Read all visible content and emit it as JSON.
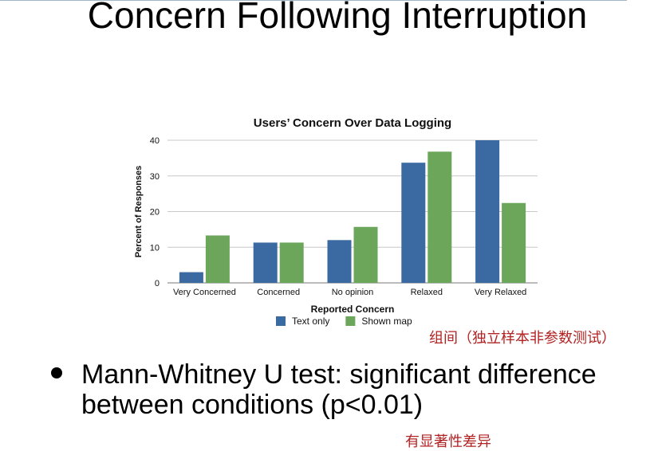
{
  "slide": {
    "title": "Concern Following Interruption",
    "bullet": "Mann-Whitney U test: significant difference between conditions (p<0.01)",
    "annotation_method": "组间（独立样本非参数测试）",
    "annotation_result": "有显著性差异"
  },
  "chart_data": {
    "type": "bar",
    "title": "Users’ Concern Over Data Logging",
    "xlabel": "Reported Concern",
    "ylabel": "Percent of Responses",
    "categories": [
      "Very Concerned",
      "Concerned",
      "No opinion",
      "Relaxed",
      "Very Relaxed"
    ],
    "series": [
      {
        "name": "Text only",
        "color": "#3b6aa3",
        "values": [
          3,
          11.3,
          12,
          33.7,
          40
        ]
      },
      {
        "name": "Shown map",
        "color": "#6ba65a",
        "values": [
          13.3,
          11.3,
          15.7,
          36.8,
          22.4
        ]
      }
    ],
    "ylim": [
      0,
      40
    ],
    "yticks": [
      0,
      10,
      20,
      30,
      40
    ],
    "grid": true,
    "legend": "bottom"
  }
}
